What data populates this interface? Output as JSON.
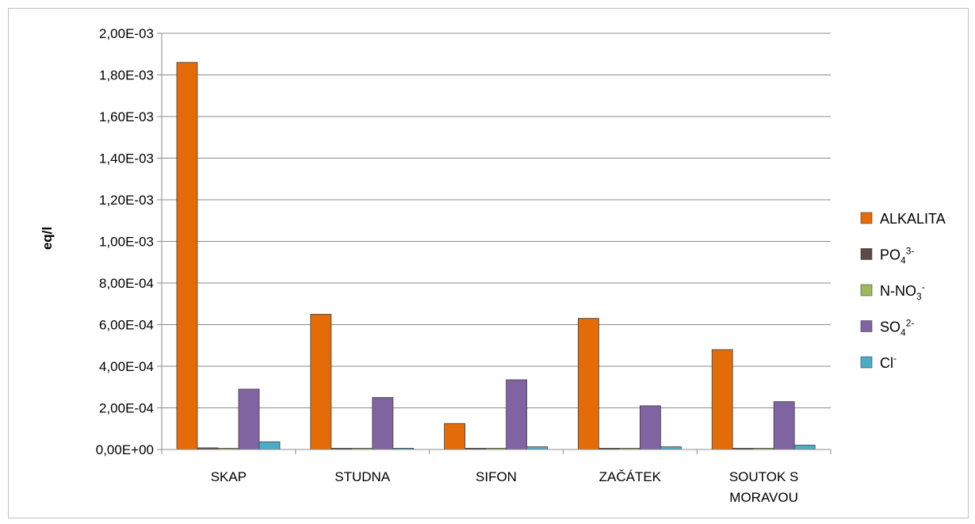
{
  "chart_data": {
    "type": "bar",
    "title": "",
    "xlabel": "",
    "ylabel": "eq/l",
    "ylim": [
      0,
      0.002
    ],
    "y_tick_labels": [
      "0,00E+00",
      "2,00E-04",
      "4,00E-04",
      "6,00E-04",
      "8,00E-04",
      "1,00E-03",
      "1,20E-03",
      "1,40E-03",
      "1,60E-03",
      "1,80E-03",
      "2,00E-03"
    ],
    "categories": [
      {
        "lines": [
          "SKAP"
        ]
      },
      {
        "lines": [
          "STUDNA"
        ]
      },
      {
        "lines": [
          "SIFON"
        ]
      },
      {
        "lines": [
          "ZAČÁTEK"
        ]
      },
      {
        "lines": [
          "SOUTOK  S",
          "MORAVOU"
        ]
      }
    ],
    "grid": true,
    "legend_position": "right",
    "series": [
      {
        "name": "ALKALITA",
        "sup": "",
        "color": "#E36C09",
        "values": [
          0.00186,
          0.00065,
          0.000125,
          0.00063,
          0.00048
        ]
      },
      {
        "name": "PO4",
        "sup": "3-",
        "color": "#5C4A44",
        "values": [
          8e-06,
          6e-06,
          6e-06,
          6e-06,
          6e-06
        ]
      },
      {
        "name": "N-NO3",
        "sup": "-",
        "color": "#9BBB59",
        "values": [
          3e-06,
          3e-06,
          3e-06,
          3e-06,
          3e-06
        ]
      },
      {
        "name": "SO4",
        "sup": "2-",
        "color": "#8064A2",
        "values": [
          0.00029,
          0.00025,
          0.000335,
          0.00021,
          0.00023
        ]
      },
      {
        "name": "Cl",
        "sup": "-",
        "color": "#4BACC6",
        "values": [
          3.7e-05,
          6e-06,
          1.3e-05,
          1.3e-05,
          2.1e-05
        ]
      }
    ]
  }
}
